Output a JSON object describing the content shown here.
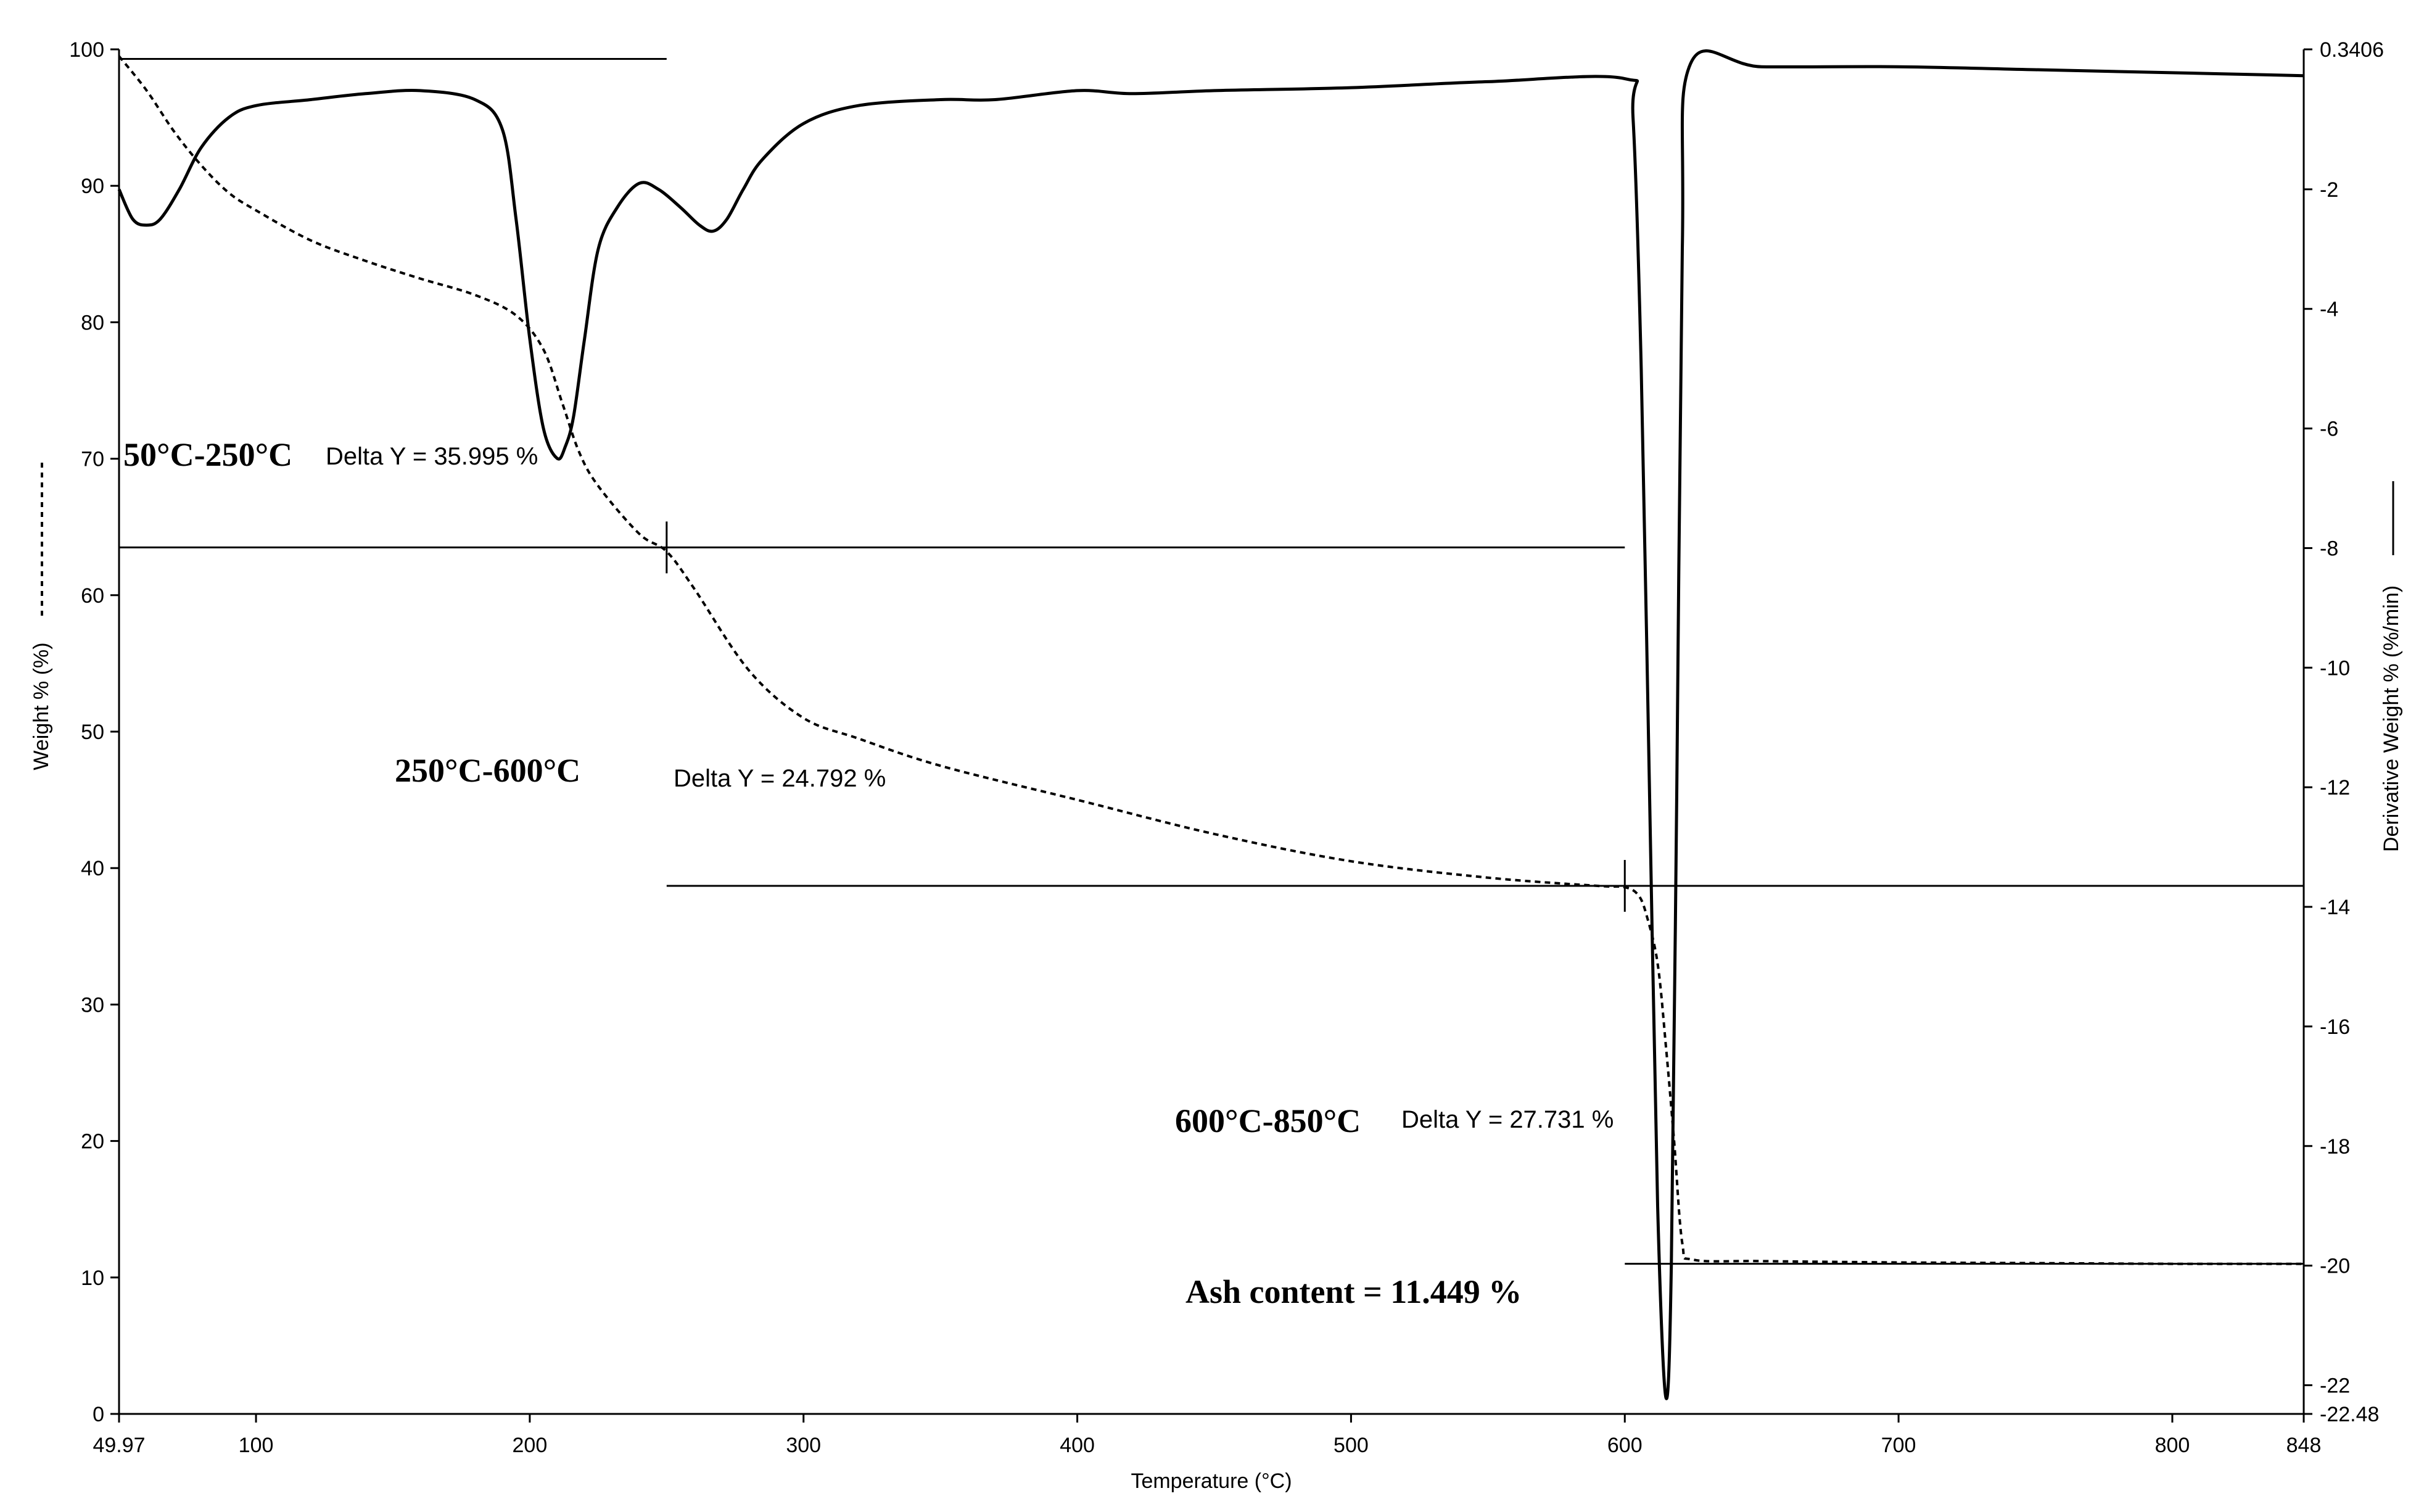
{
  "chart_data": {
    "type": "line",
    "xlabel": "Temperature (°C)",
    "ylabel_left": "Weight % (%)",
    "ylabel_right": "Derivative Weight % (%/min)",
    "xlim": [
      49.97,
      848
    ],
    "ylim_left": [
      0,
      100
    ],
    "ylim_right": [
      -22.48,
      0.3406
    ],
    "x_ticks": [
      {
        "value": 49.97,
        "label": "49.97"
      },
      {
        "value": 100,
        "label": "100"
      },
      {
        "value": 200,
        "label": "200"
      },
      {
        "value": 300,
        "label": "300"
      },
      {
        "value": 400,
        "label": "400"
      },
      {
        "value": 500,
        "label": "500"
      },
      {
        "value": 600,
        "label": "600"
      },
      {
        "value": 700,
        "label": "700"
      },
      {
        "value": 800,
        "label": "800"
      },
      {
        "value": 848,
        "label": "848"
      }
    ],
    "y_left_ticks": [
      {
        "value": 0,
        "label": "0"
      },
      {
        "value": 10,
        "label": "10"
      },
      {
        "value": 20,
        "label": "20"
      },
      {
        "value": 30,
        "label": "30"
      },
      {
        "value": 40,
        "label": "40"
      },
      {
        "value": 50,
        "label": "50"
      },
      {
        "value": 60,
        "label": "60"
      },
      {
        "value": 70,
        "label": "70"
      },
      {
        "value": 80,
        "label": "80"
      },
      {
        "value": 90,
        "label": "90"
      },
      {
        "value": 100,
        "label": "100"
      }
    ],
    "y_right_ticks": [
      {
        "value": 0.3406,
        "label": "0.3406"
      },
      {
        "value": -2,
        "label": "-2"
      },
      {
        "value": -4,
        "label": "-4"
      },
      {
        "value": -6,
        "label": "-6"
      },
      {
        "value": -8,
        "label": "-8"
      },
      {
        "value": -10,
        "label": "-10"
      },
      {
        "value": -12,
        "label": "-12"
      },
      {
        "value": -14,
        "label": "-14"
      },
      {
        "value": -16,
        "label": "-16"
      },
      {
        "value": -18,
        "label": "-18"
      },
      {
        "value": -20,
        "label": "-20"
      },
      {
        "value": -22,
        "label": "-22"
      },
      {
        "value": -22.48,
        "label": "-22.48"
      }
    ],
    "series": [
      {
        "axis": "left",
        "style": "dashed",
        "x": [
          49.97,
          60,
          70,
          80,
          90,
          100,
          120,
          140,
          160,
          180,
          195,
          205,
          212,
          218,
          225,
          240,
          250,
          260,
          280,
          300,
          320,
          350,
          400,
          450,
          500,
          550,
          590,
          600,
          605,
          608,
          612,
          615,
          618,
          621,
          625,
          650,
          700,
          750,
          800,
          848
        ],
        "values": [
          99.5,
          97,
          94,
          91.5,
          89.5,
          88.2,
          86,
          84.5,
          83.2,
          82,
          80.5,
          78,
          74,
          70.5,
          68,
          64.5,
          63.2,
          60.5,
          54.5,
          51,
          49.5,
          47.5,
          45,
          42.5,
          40.5,
          39.3,
          38.7,
          38.6,
          38,
          36.5,
          33,
          27,
          20,
          12.5,
          11.3,
          11.2,
          11.1,
          11.05,
          11,
          11
        ]
      },
      {
        "axis": "right",
        "style": "solid",
        "x": [
          49.97,
          55,
          60,
          65,
          72,
          80,
          90,
          100,
          120,
          140,
          160,
          180,
          190,
          195,
          200,
          205,
          210,
          213,
          216,
          220,
          225,
          232,
          240,
          247,
          255,
          262,
          267,
          272,
          278,
          285,
          300,
          320,
          350,
          370,
          400,
          420,
          450,
          500,
          550,
          600,
          603,
          606,
          609,
          612,
          615,
          617,
          619,
          621,
          624,
          650,
          700,
          750,
          800,
          848
        ],
        "values": [
          -2,
          -2.5,
          -2.6,
          -2.5,
          -2,
          -1.3,
          -0.8,
          -0.6,
          -0.5,
          -0.4,
          -0.35,
          -0.5,
          -1,
          -2.5,
          -4.5,
          -6,
          -6.5,
          -6.3,
          -5.8,
          -4.5,
          -3,
          -2.3,
          -1.9,
          -2,
          -2.3,
          -2.6,
          -2.7,
          -2.5,
          -2,
          -1.5,
          -0.9,
          -0.6,
          -0.5,
          -0.5,
          -0.35,
          -0.4,
          -0.35,
          -0.3,
          -0.2,
          -0.15,
          -0.8,
          -5,
          -12,
          -19,
          -22.2,
          -20,
          -12,
          -3,
          0.1,
          0.05,
          0.05,
          0.0,
          -0.05,
          -0.1
        ]
      }
    ],
    "annotations": [
      {
        "range": "50°C-250°C",
        "delta": "Delta Y = 35.995 %"
      },
      {
        "range": "250°C-600°C",
        "delta": "Delta Y = 24.792 %"
      },
      {
        "range": "600°C-850°C",
        "delta": "Delta Y = 27.731 %"
      }
    ],
    "ash": "Ash content = 11.449 %",
    "step_lines": [
      {
        "x1": 49.97,
        "x2": 250,
        "y": 99.3
      },
      {
        "x1": 49.97,
        "x2": 600,
        "y": 63.5
      },
      {
        "x1": 250,
        "x2": 848,
        "y": 38.7
      },
      {
        "x1": 600,
        "x2": 848,
        "y": 11
      }
    ],
    "step_markers": [
      {
        "x": 250,
        "y": 63.5
      },
      {
        "x": 600,
        "y": 38.7
      }
    ],
    "grid": false
  }
}
